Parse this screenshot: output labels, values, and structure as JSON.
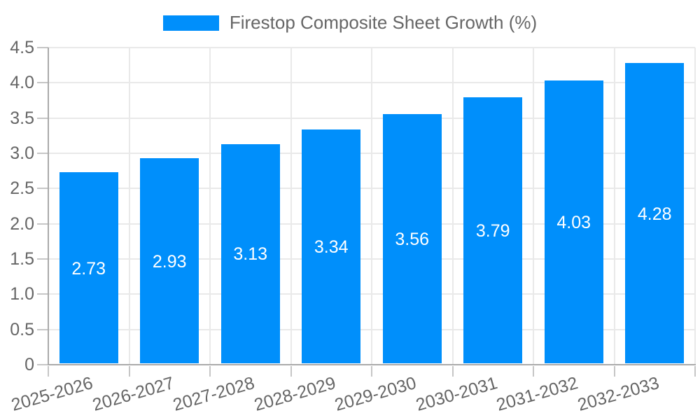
{
  "chart_data": {
    "type": "bar",
    "title": "Firestop Composite Sheet Growth (%)",
    "legend": {
      "position": "top",
      "entries": [
        {
          "label": "Firestop Composite Sheet Growth (%)",
          "color": "#008FFB"
        }
      ]
    },
    "categories": [
      "2025-2026",
      "2026-2027",
      "2027-2028",
      "2028-2029",
      "2029-2030",
      "2030-2031",
      "2031-2032",
      "2032-2033"
    ],
    "values": [
      2.73,
      2.93,
      3.13,
      3.34,
      3.56,
      3.79,
      4.03,
      4.28
    ],
    "value_labels": [
      "2.73",
      "2.93",
      "3.13",
      "3.34",
      "3.56",
      "3.79",
      "4.03",
      "4.28"
    ],
    "xlabel": "",
    "ylabel": "",
    "ylim": [
      0,
      4.5
    ],
    "y_ticks": [
      "0",
      "0.5",
      "1.0",
      "1.5",
      "2.0",
      "2.5",
      "3.0",
      "3.5",
      "4.0",
      "4.5"
    ],
    "grid": "horizontal-and-vertical",
    "colors": {
      "bar": "#008FFB",
      "bar_value_text": "#ffffff",
      "axis_text": "#666666",
      "gridline": "#e9e9e9",
      "axis_line": "#aaaaaa"
    }
  }
}
